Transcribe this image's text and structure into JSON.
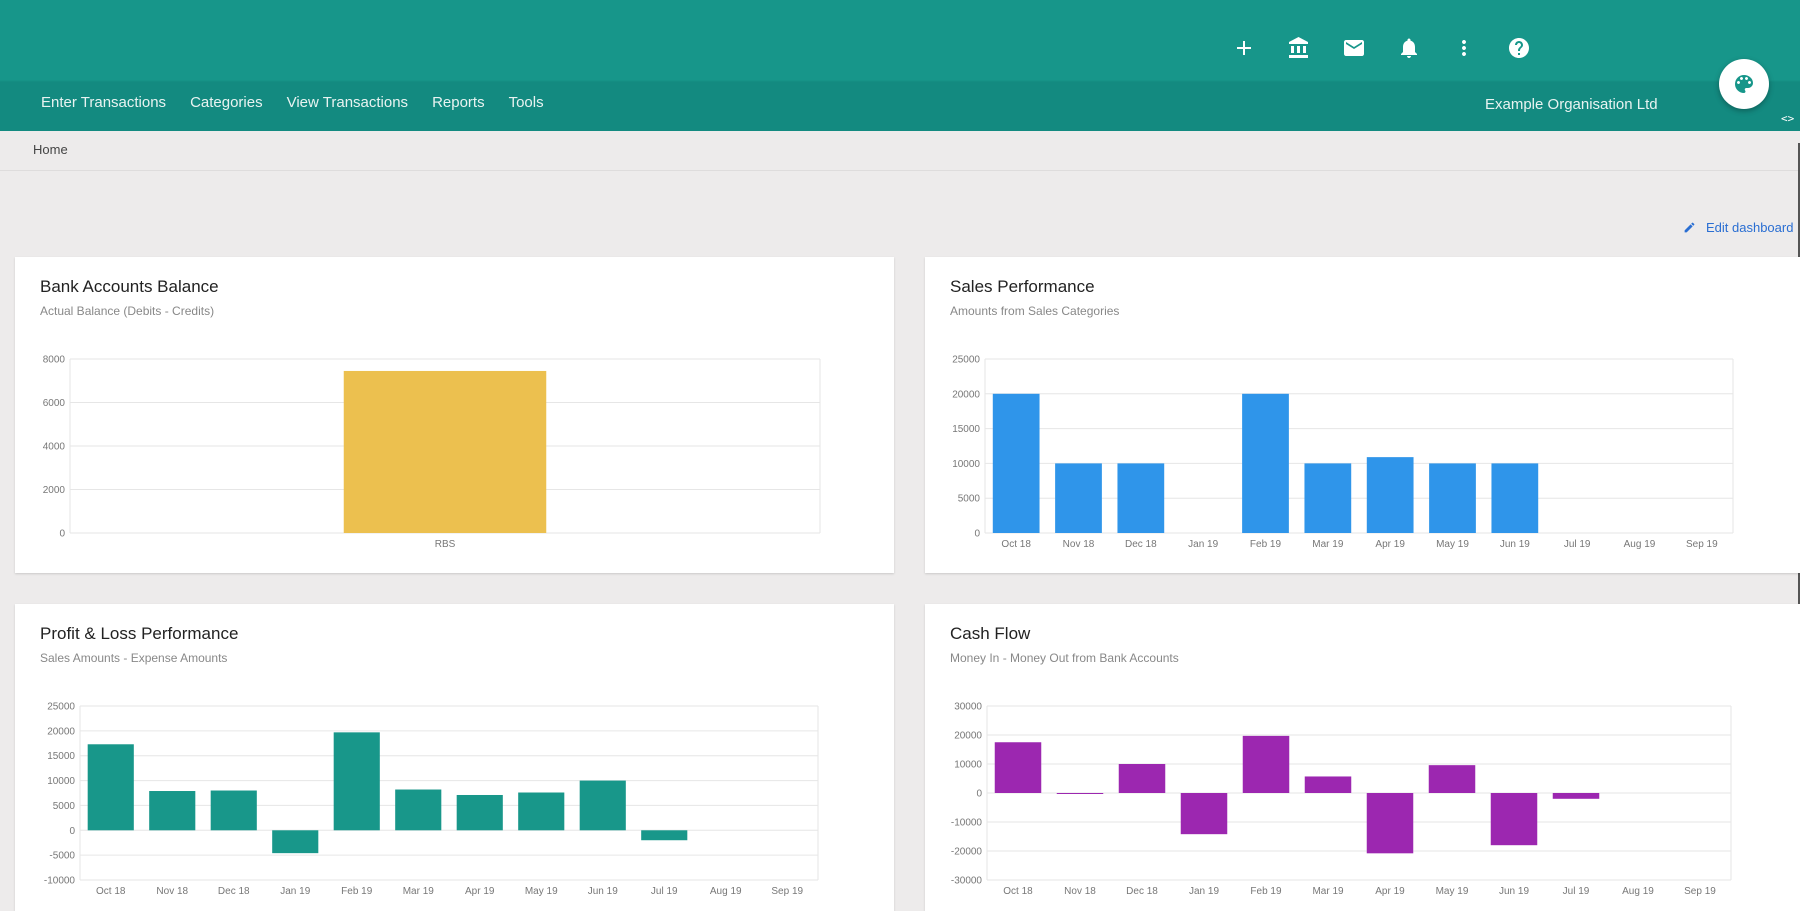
{
  "header": {
    "nav": [
      "Enter Transactions",
      "Categories",
      "View Transactions",
      "Reports",
      "Tools"
    ],
    "organisation": "Example Organisation Ltd",
    "icons": [
      "plus-icon",
      "bank-icon",
      "mail-icon",
      "bell-icon",
      "more-vert-icon",
      "help-icon"
    ],
    "code_toggle": "<>"
  },
  "breadcrumb": "Home",
  "edit_dashboard": "Edit dashboard",
  "colors": {
    "header": "#17968a",
    "balance": "#ecc04f",
    "sales": "#2f95ea",
    "pl": "#18978a",
    "cashflow": "#9c27b0"
  },
  "chart_data": [
    {
      "type": "bar",
      "title": "Bank Accounts Balance",
      "subtitle": "Actual Balance (Debits - Credits)",
      "categories": [
        "RBS"
      ],
      "values": [
        7450
      ],
      "yticks": [
        0,
        2000,
        4000,
        6000,
        8000
      ],
      "ylim": [
        0,
        8000
      ],
      "grid": true,
      "color": "#ecc04f"
    },
    {
      "type": "bar",
      "title": "Sales Performance",
      "subtitle": "Amounts from Sales Categories",
      "categories": [
        "Oct 18",
        "Nov 18",
        "Dec 18",
        "Jan 19",
        "Feb 19",
        "Mar 19",
        "Apr 19",
        "May 19",
        "Jun 19",
        "Jul 19",
        "Aug 19",
        "Sep 19"
      ],
      "values": [
        20000,
        10000,
        10000,
        0,
        20000,
        10000,
        10900,
        10000,
        10000,
        0,
        0,
        0
      ],
      "yticks": [
        0,
        5000,
        10000,
        15000,
        20000,
        25000
      ],
      "ylim": [
        0,
        25000
      ],
      "grid": true,
      "color": "#2f95ea"
    },
    {
      "type": "bar",
      "title": "Profit & Loss Performance",
      "subtitle": "Sales Amounts - Expense Amounts",
      "categories": [
        "Oct 18",
        "Nov 18",
        "Dec 18",
        "Jan 19",
        "Feb 19",
        "Mar 19",
        "Apr 19",
        "May 19",
        "Jun 19",
        "Jul 19",
        "Aug 19",
        "Sep 19"
      ],
      "values": [
        17300,
        7900,
        8000,
        -4600,
        19700,
        8200,
        7100,
        7600,
        10000,
        -2000,
        0,
        0
      ],
      "yticks": [
        -10000,
        -5000,
        0,
        5000,
        10000,
        15000,
        20000,
        25000
      ],
      "ylim": [
        -10000,
        25000
      ],
      "grid": true,
      "color": "#18978a"
    },
    {
      "type": "bar",
      "title": "Cash Flow",
      "subtitle": "Money In - Money Out from Bank Accounts",
      "categories": [
        "Oct 18",
        "Nov 18",
        "Dec 18",
        "Jan 19",
        "Feb 19",
        "Mar 19",
        "Apr 19",
        "May 19",
        "Jun 19",
        "Jul 19",
        "Aug 19",
        "Sep 19"
      ],
      "values": [
        17500,
        -300,
        10000,
        -14200,
        19700,
        5700,
        -20800,
        9600,
        -18000,
        -2000,
        0,
        0
      ],
      "yticks": [
        -30000,
        -20000,
        -10000,
        0,
        10000,
        20000,
        30000
      ],
      "ylim": [
        -30000,
        30000
      ],
      "grid": true,
      "color": "#9c27b0"
    }
  ]
}
